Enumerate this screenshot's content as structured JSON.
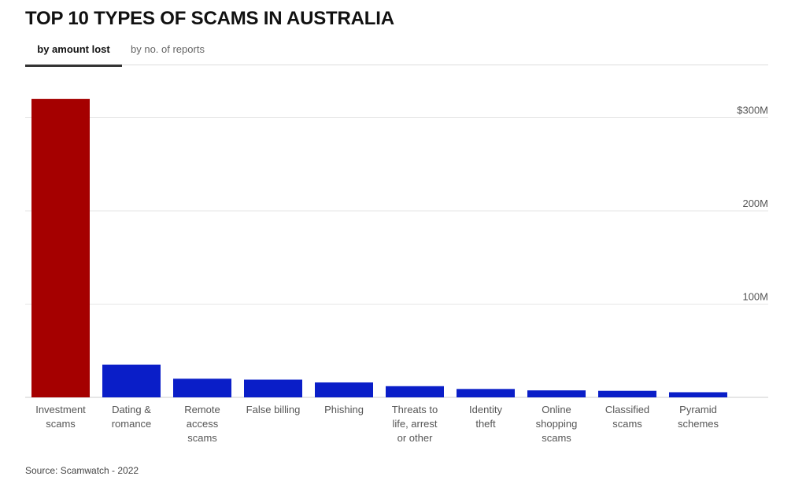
{
  "title": "TOP 10 TYPES OF SCAMS IN AUSTRALIA",
  "tabs": [
    {
      "label": "by amount lost",
      "active": true
    },
    {
      "label": "by no. of reports",
      "active": false
    }
  ],
  "source": "Source: Scamwatch - 2022",
  "colors": {
    "highlight": "#a50000",
    "bar": "#0a1ec8",
    "grid": "#e6e6e6",
    "axis_text": "#555555"
  },
  "chart_data": {
    "type": "bar",
    "title": "TOP 10 TYPES OF SCAMS IN AUSTRALIA",
    "xlabel": "",
    "ylabel": "",
    "ylim": [
      0,
      350
    ],
    "yticks": [
      100,
      200,
      300
    ],
    "ytick_labels": [
      "100M",
      "200M",
      "$300M"
    ],
    "grid": true,
    "categories": [
      [
        "Investment",
        "scams"
      ],
      [
        "Dating &",
        "romance"
      ],
      [
        "Remote",
        "access",
        "scams"
      ],
      [
        "False billing"
      ],
      [
        "Phishing"
      ],
      [
        "Threats to",
        "life, arrest",
        "or other"
      ],
      [
        "Identity",
        "theft"
      ],
      [
        "Online",
        "shopping",
        "scams"
      ],
      [
        "Classified",
        "scams"
      ],
      [
        "Pyramid",
        "schemes"
      ]
    ],
    "values": [
      320,
      35,
      20,
      19,
      16,
      12,
      9,
      7.5,
      7,
      5.5
    ],
    "highlight_index": 0
  }
}
